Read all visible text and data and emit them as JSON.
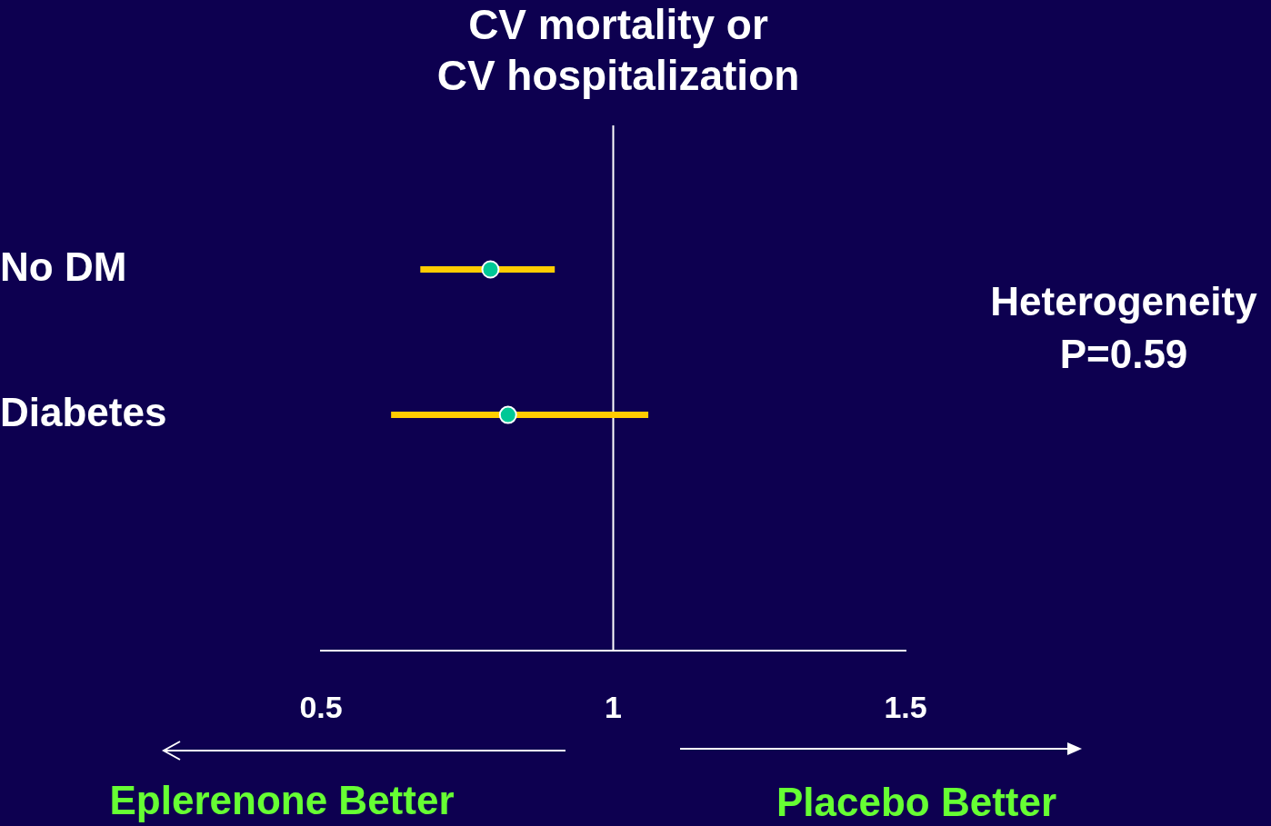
{
  "chart_data": {
    "type": "scatter",
    "title": "CV mortality or\nCV hospitalization",
    "categories": [
      "No DM",
      "Diabetes"
    ],
    "orientation": "horizontal",
    "series": [
      {
        "color": "#00c896",
        "values": [
          0.79,
          0.82
        ],
        "errors": [
          [
            0.67,
            0.9
          ],
          [
            0.62,
            1.06
          ]
        ]
      }
    ],
    "xlim": [
      0.5,
      1.5
    ],
    "xticks": [
      0.5,
      1,
      1.5
    ],
    "ref_lines": [
      {
        "axis": "x",
        "value": 1,
        "color": "#ffffff"
      }
    ],
    "annotations": [
      "Heterogeneity\nP=0.59",
      "Eplerenone Better",
      "Placebo Better"
    ],
    "marker": "circle",
    "legend": false
  }
}
